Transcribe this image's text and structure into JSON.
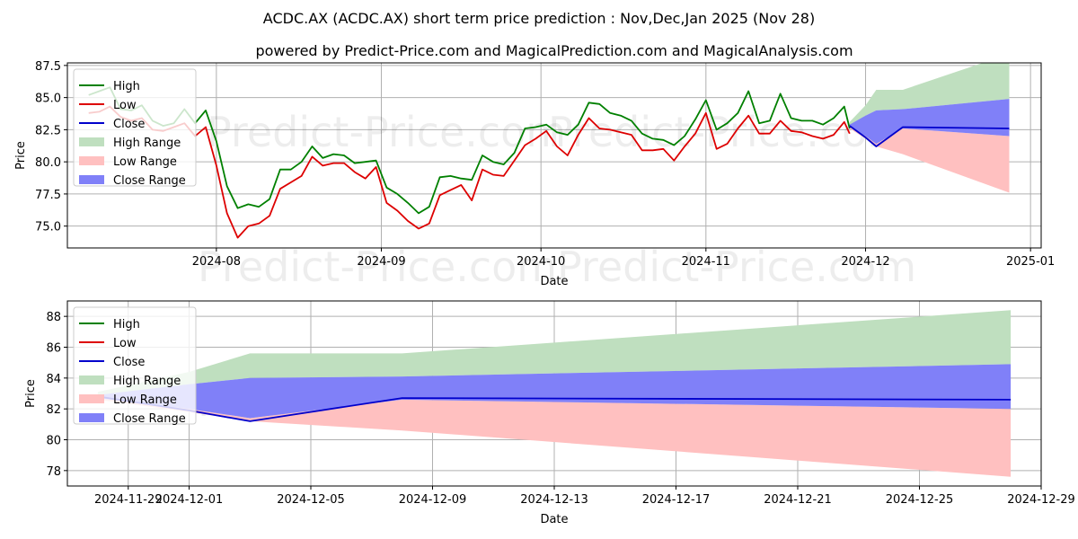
{
  "title": "ACDC.AX (ACDC.AX) short term price prediction : Nov,Dec,Jan 2025 (Nov 28)",
  "subtitle": "powered by Predict-Price.com and MagicalPrediction.com and MagicalAnalysis.com",
  "watermark": "Predict-Price.com",
  "colors": {
    "high": "#008000",
    "low": "#dd0000",
    "close": "#0000cc",
    "high_range": "#bfdfbf",
    "low_range": "#ffc0c0",
    "close_range": "#8080f8"
  },
  "legend_labels": {
    "high": "High",
    "low": "Low",
    "close": "Close",
    "high_range": "High Range",
    "low_range": "Low Range",
    "close_range": "Close Range"
  },
  "chart_data": [
    {
      "type": "line",
      "xlabel": "Date",
      "ylabel": "Price",
      "xlim": [
        "2024-07-04",
        "2025-01-03"
      ],
      "ylim": [
        73.3,
        87.7
      ],
      "x_ticks": [
        "2024-08",
        "2024-09",
        "2024-10",
        "2024-11",
        "2024-12",
        "2025-01"
      ],
      "x_tick_dates": [
        "2024-08-01",
        "2024-09-01",
        "2024-10-01",
        "2024-11-01",
        "2024-12-01",
        "2025-01-01"
      ],
      "y_ticks": [
        75.0,
        77.5,
        80.0,
        82.5,
        85.0,
        87.5
      ],
      "grid": true,
      "legend_position": "upper-left",
      "history": {
        "dates": [
          "2024-07-08",
          "2024-07-10",
          "2024-07-12",
          "2024-07-14",
          "2024-07-16",
          "2024-07-18",
          "2024-07-20",
          "2024-07-22",
          "2024-07-24",
          "2024-07-26",
          "2024-07-28",
          "2024-07-30",
          "2024-08-01",
          "2024-08-03",
          "2024-08-05",
          "2024-08-07",
          "2024-08-09",
          "2024-08-11",
          "2024-08-13",
          "2024-08-15",
          "2024-08-17",
          "2024-08-19",
          "2024-08-21",
          "2024-08-23",
          "2024-08-25",
          "2024-08-27",
          "2024-08-29",
          "2024-08-31",
          "2024-09-02",
          "2024-09-04",
          "2024-09-06",
          "2024-09-08",
          "2024-09-10",
          "2024-09-12",
          "2024-09-14",
          "2024-09-16",
          "2024-09-18",
          "2024-09-20",
          "2024-09-22",
          "2024-09-24",
          "2024-09-26",
          "2024-09-28",
          "2024-09-30",
          "2024-10-02",
          "2024-10-04",
          "2024-10-06",
          "2024-10-08",
          "2024-10-10",
          "2024-10-12",
          "2024-10-14",
          "2024-10-16",
          "2024-10-18",
          "2024-10-20",
          "2024-10-22",
          "2024-10-24",
          "2024-10-26",
          "2024-10-28",
          "2024-10-30",
          "2024-11-01",
          "2024-11-03",
          "2024-11-05",
          "2024-11-07",
          "2024-11-09",
          "2024-11-11",
          "2024-11-13",
          "2024-11-15",
          "2024-11-17",
          "2024-11-19",
          "2024-11-21",
          "2024-11-23",
          "2024-11-25",
          "2024-11-27",
          "2024-11-28"
        ],
        "high": [
          85.2,
          85.5,
          85.8,
          84.1,
          84.0,
          84.4,
          83.2,
          82.8,
          83.0,
          84.1,
          83.0,
          84.0,
          81.6,
          78.1,
          76.4,
          76.7,
          76.5,
          77.1,
          79.4,
          79.4,
          80.0,
          81.2,
          80.3,
          80.6,
          80.5,
          79.9,
          80.0,
          80.1,
          78.0,
          77.5,
          76.8,
          76.0,
          76.5,
          78.8,
          78.9,
          78.7,
          78.6,
          80.5,
          80.0,
          79.8,
          80.7,
          82.6,
          82.7,
          82.9,
          82.3,
          82.1,
          82.9,
          84.6,
          84.5,
          83.8,
          83.6,
          83.2,
          82.2,
          81.8,
          81.7,
          81.3,
          82.0,
          83.3,
          84.8,
          82.5,
          83.0,
          83.8,
          85.5,
          83.0,
          83.2,
          85.3,
          83.4,
          83.2,
          83.2,
          82.9,
          83.4,
          84.3,
          82.6
        ],
        "low": [
          83.8,
          83.9,
          84.3,
          83.5,
          83.2,
          83.4,
          82.5,
          82.4,
          82.7,
          83.0,
          82.0,
          82.7,
          79.7,
          76.0,
          74.1,
          75.0,
          75.2,
          75.8,
          77.9,
          78.4,
          78.9,
          80.4,
          79.7,
          79.9,
          79.9,
          79.2,
          78.7,
          79.6,
          76.8,
          76.2,
          75.4,
          74.8,
          75.2,
          77.4,
          77.8,
          78.2,
          77.0,
          79.4,
          79.0,
          78.9,
          80.1,
          81.3,
          81.8,
          82.4,
          81.2,
          80.5,
          82.1,
          83.4,
          82.6,
          82.5,
          82.3,
          82.1,
          80.9,
          80.9,
          81.0,
          80.1,
          81.2,
          82.2,
          83.8,
          81.0,
          81.4,
          82.6,
          83.6,
          82.2,
          82.2,
          83.2,
          82.4,
          82.3,
          82.0,
          81.8,
          82.1,
          83.1,
          82.2
        ]
      },
      "forecast": {
        "dates": [
          "2024-11-28",
          "2024-12-01",
          "2024-12-03",
          "2024-12-08",
          "2024-12-28"
        ],
        "close": [
          82.8,
          81.9,
          81.2,
          82.7,
          82.6
        ],
        "high_range_upper": [
          83.1,
          84.4,
          85.6,
          85.6,
          88.4
        ],
        "high_range_lower": [
          82.6,
          83.6,
          84.0,
          84.1,
          84.9
        ],
        "low_range_upper": [
          82.8,
          82.0,
          81.4,
          82.6,
          82.0
        ],
        "low_range_lower": [
          82.6,
          81.8,
          81.2,
          80.6,
          77.6
        ],
        "close_range_upper": [
          82.9,
          83.6,
          84.0,
          84.1,
          84.9
        ],
        "close_range_lower": [
          82.7,
          82.0,
          81.4,
          82.6,
          82.0
        ]
      }
    },
    {
      "type": "line",
      "xlabel": "Date",
      "ylabel": "Price",
      "xlim": [
        "2024-11-27",
        "2024-12-29"
      ],
      "ylim": [
        77.0,
        89.0
      ],
      "x_ticks": [
        "2024-11-29",
        "2024-12-01",
        "2024-12-05",
        "2024-12-09",
        "2024-12-13",
        "2024-12-17",
        "2024-12-21",
        "2024-12-25",
        "2024-12-29"
      ],
      "x_tick_dates": [
        "2024-11-29",
        "2024-12-01",
        "2024-12-05",
        "2024-12-09",
        "2024-12-13",
        "2024-12-17",
        "2024-12-21",
        "2024-12-25",
        "2024-12-29"
      ],
      "y_ticks": [
        78,
        80,
        82,
        84,
        86,
        88
      ],
      "grid": true,
      "legend_position": "upper-left",
      "forecast": {
        "dates": [
          "2024-11-28",
          "2024-12-01",
          "2024-12-03",
          "2024-12-08",
          "2024-12-28"
        ],
        "close": [
          82.8,
          81.9,
          81.2,
          82.7,
          82.6
        ],
        "high_range_upper": [
          83.1,
          84.4,
          85.6,
          85.6,
          88.4
        ],
        "high_range_lower": [
          82.6,
          83.6,
          84.0,
          84.1,
          84.9
        ],
        "low_range_upper": [
          82.8,
          82.0,
          81.4,
          82.6,
          82.0
        ],
        "low_range_lower": [
          82.6,
          81.8,
          81.2,
          80.6,
          77.6
        ],
        "close_range_upper": [
          82.9,
          83.6,
          84.0,
          84.1,
          84.9
        ],
        "close_range_lower": [
          82.7,
          82.0,
          81.4,
          82.6,
          82.0
        ]
      }
    }
  ]
}
